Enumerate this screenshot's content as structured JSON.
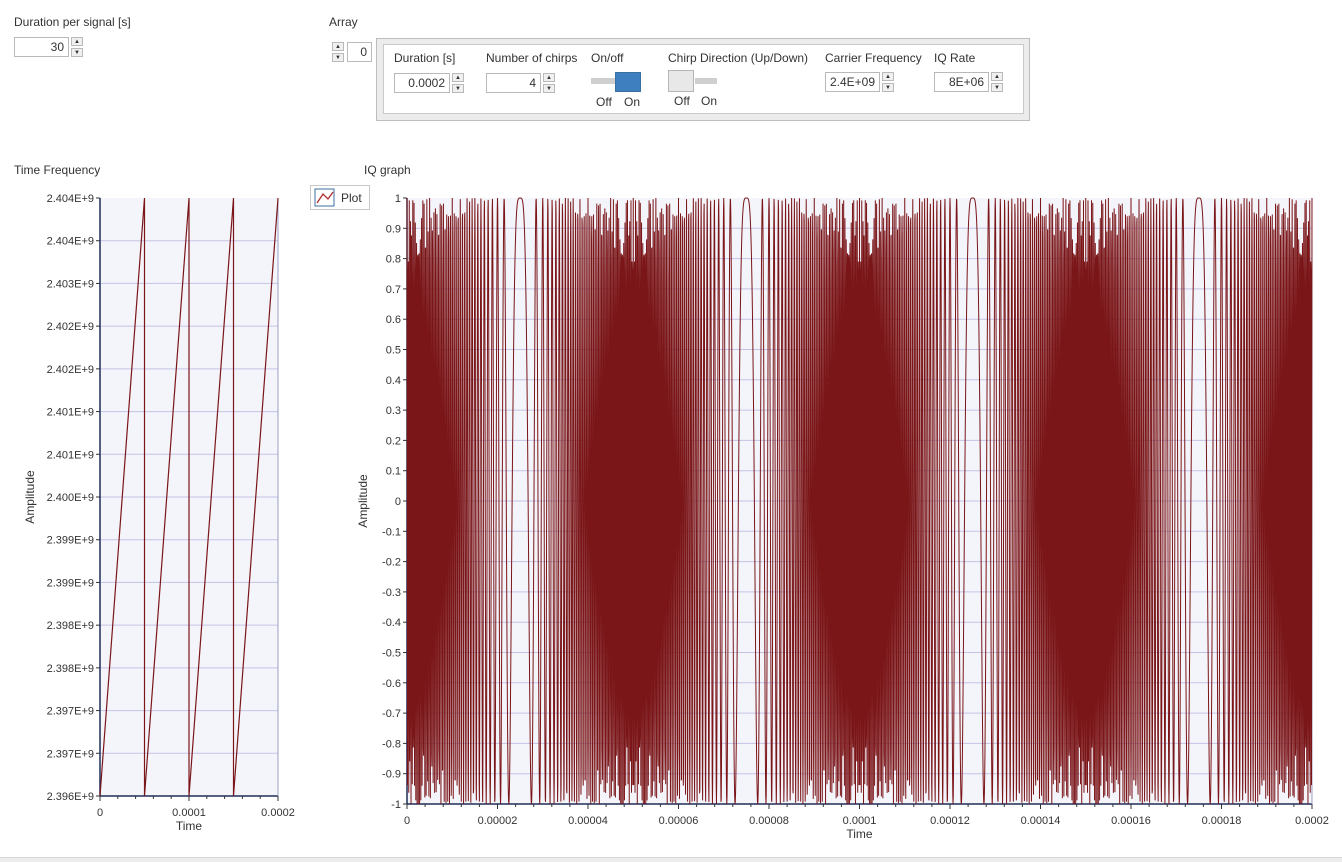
{
  "duration_per_signal": {
    "label": "Duration per signal [s]",
    "value": "30"
  },
  "array": {
    "label": "Array",
    "index": "0",
    "fields": {
      "duration": {
        "label": "Duration [s]",
        "value": "0.0002"
      },
      "num_chirps": {
        "label": "Number of chirps",
        "value": "4"
      },
      "on_off": {
        "label": "On/off",
        "off_label": "Off",
        "on_label": "On",
        "state": "On"
      },
      "chirp_direction": {
        "label": "Chirp Direction (Up/Down)",
        "off_label": "Off",
        "on_label": "On",
        "state": "Off"
      },
      "carrier_frequency": {
        "label": "Carrier Frequency",
        "value": "2.4E+09"
      },
      "iq_rate": {
        "label": "IQ Rate",
        "value": "8E+06"
      }
    }
  },
  "plot_legend": {
    "label": "Plot"
  },
  "colors": {
    "trace": "#7a1518",
    "plot_bg": "#f4f5fb",
    "grid": "#c3c3e6",
    "accent": "#3d7fbf"
  },
  "chart_data": [
    {
      "type": "line",
      "title": "Time Frequency",
      "xlabel": "Time",
      "ylabel": "Amplitude",
      "xlim": [
        0,
        0.0002
      ],
      "ylim": [
        2396000000,
        2404000000
      ],
      "x_ticks": [
        "0",
        "0.0001",
        "0.0002"
      ],
      "y_ticks": [
        "2.396E+9",
        "2.397E+9",
        "2.397E+9",
        "2.398E+9",
        "2.398E+9",
        "2.399E+9",
        "2.399E+9",
        "2.400E+9",
        "2.401E+9",
        "2.401E+9",
        "2.402E+9",
        "2.402E+9",
        "2.403E+9",
        "2.404E+9",
        "2.404E+9"
      ],
      "grid": true,
      "series": [
        {
          "x": [
            0,
            5e-05,
            5e-05,
            0.0001,
            0.0001,
            0.00015,
            0.00015,
            0.0002
          ],
          "y": [
            2396000000,
            2404000000,
            2396000000,
            2404000000,
            2396000000,
            2404000000,
            2396000000,
            2404000000
          ]
        }
      ]
    },
    {
      "type": "line",
      "title": "IQ graph",
      "xlabel": "Time",
      "ylabel": "Amplitude",
      "xlim": [
        0,
        0.0002
      ],
      "ylim": [
        -1,
        1
      ],
      "x_ticks": [
        "0",
        "0.00002",
        "0.00004",
        "0.00006",
        "0.00008",
        "0.0001",
        "0.00012",
        "0.00014",
        "0.00016",
        "0.00018",
        "0.0002"
      ],
      "y_ticks": [
        "-1",
        "-0.9",
        "-0.8",
        "-0.7",
        "-0.6",
        "-0.5",
        "-0.4",
        "-0.3",
        "-0.2",
        "-0.1",
        "0",
        "0.1",
        "0.2",
        "0.3",
        "0.4",
        "0.5",
        "0.6",
        "0.7",
        "0.8",
        "0.9",
        "1"
      ],
      "grid": true,
      "signal": {
        "kind": "linear chirp, cos(phase)",
        "chirps": 4,
        "chirp_duration": 5e-05,
        "f_start_offset_hz": -4000000,
        "f_end_offset_hz": 4000000,
        "sample_rate": 8000000
      }
    }
  ]
}
